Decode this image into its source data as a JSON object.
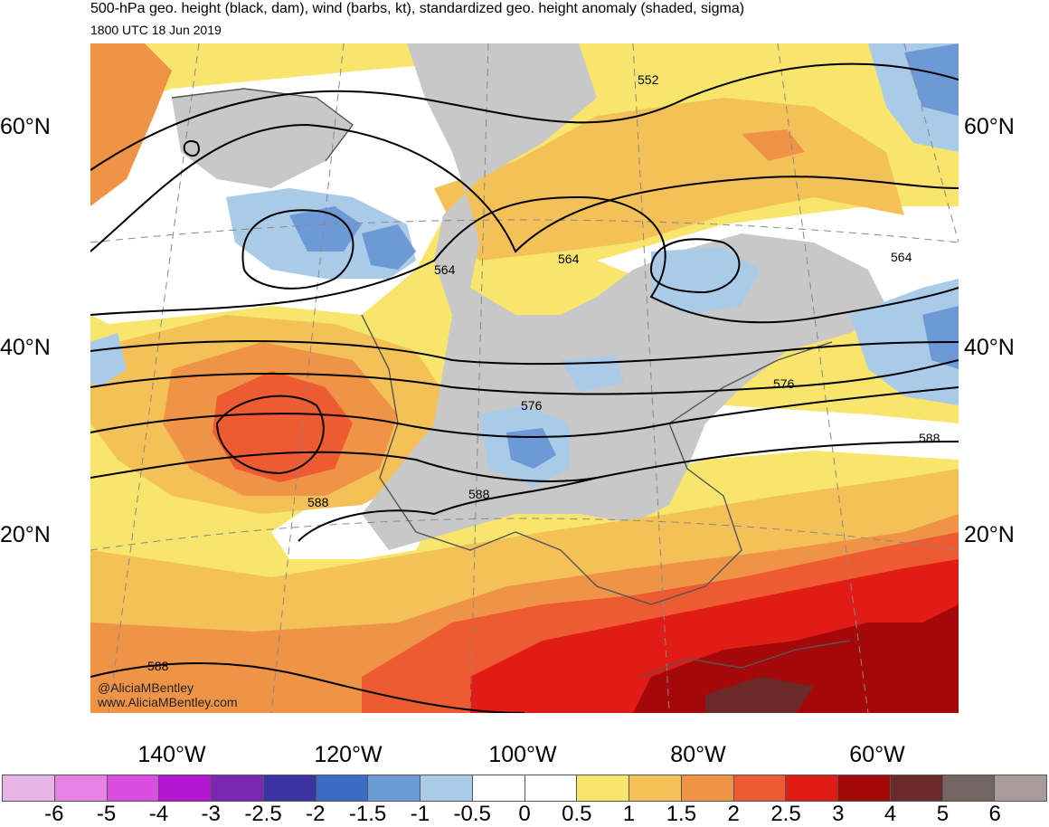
{
  "title": "500-hPa geo. height (black, dam), wind (barbs, kt), standardized geo. height anomaly (shaded, sigma)",
  "valid_time": "1800 UTC 18 Jun 2019",
  "credits": {
    "twitter": "@AliciaMBentley",
    "website": "www.AliciaMBentley.com"
  },
  "latitude_labels": [
    "60°N",
    "40°N",
    "20°N"
  ],
  "longitude_labels": [
    "140°W",
    "120°W",
    "100°W",
    "80°W",
    "60°W"
  ],
  "height_contour_labels": [
    "552",
    "564",
    "564",
    "564",
    "576",
    "576",
    "588",
    "588",
    "588",
    "588"
  ],
  "colors": {
    "land_mask": "#c8c8c8",
    "coastline": "#555555",
    "contour": "#000000",
    "graticule": "#888888"
  },
  "colorbar": {
    "tick_labels": [
      "-6",
      "-5",
      "-4",
      "-3",
      "-2.5",
      "-2",
      "-1.5",
      "-1",
      "-0.5",
      "0",
      "0.5",
      "1",
      "1.5",
      "2",
      "2.5",
      "3",
      "4",
      "5",
      "6"
    ],
    "colors": [
      "#e8b6e6",
      "#e782e4",
      "#d94ee0",
      "#b517d1",
      "#7a28b4",
      "#3c33a3",
      "#3a6cc3",
      "#6d99d6",
      "#a9cbe8",
      "#ffffff",
      "#ffffff",
      "#f8e56c",
      "#f4c159",
      "#ef9447",
      "#ee5a32",
      "#e11b15",
      "#a40808",
      "#6b2a2a",
      "#736562",
      "#a89c9a"
    ]
  }
}
